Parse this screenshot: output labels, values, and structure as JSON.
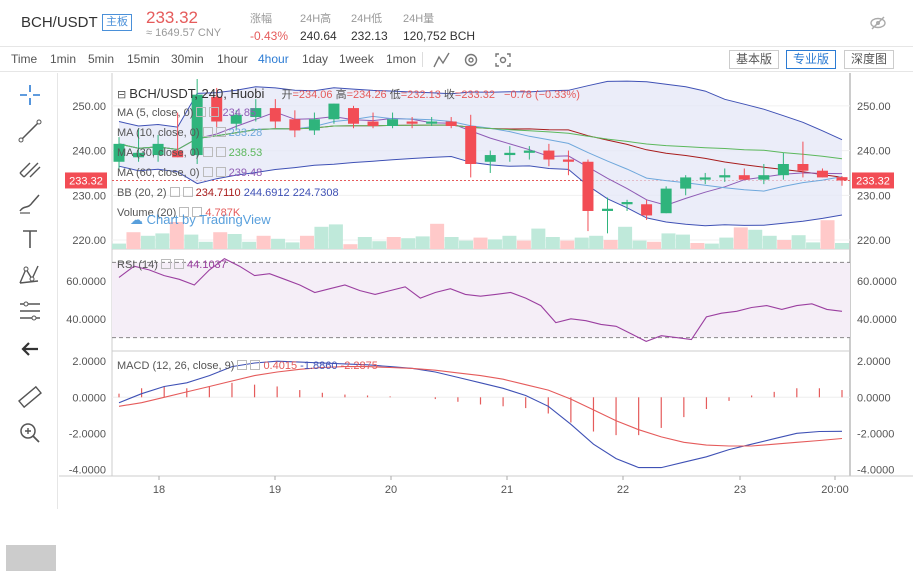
{
  "header": {
    "pair": "BCH/USDT",
    "board_badge": "主板",
    "last_price": "233.32",
    "cny_price": "≈ 1649.57 CNY",
    "stats": [
      {
        "label": "涨幅",
        "value": "-0.43%",
        "negative": true
      },
      {
        "label": "24H高",
        "value": "240.64",
        "negative": false
      },
      {
        "label": "24H低",
        "value": "232.13",
        "negative": false
      },
      {
        "label": "24H量",
        "value": "120,752 BCH",
        "negative": false
      }
    ],
    "hide_icon": "eye-slash-icon"
  },
  "toolbar": {
    "timeframes": [
      {
        "label": "Time",
        "active": false
      },
      {
        "label": "1min",
        "active": false
      },
      {
        "label": "5min",
        "active": false
      },
      {
        "label": "15min",
        "active": false
      },
      {
        "label": "30min",
        "active": false
      },
      {
        "label": "1hour",
        "active": false
      },
      {
        "label": "4hour",
        "active": true
      },
      {
        "label": "1day",
        "active": false
      },
      {
        "label": "1week",
        "active": false
      },
      {
        "label": "1mon",
        "active": false
      }
    ],
    "tool_icons": [
      "indicator-icon",
      "settings-icon",
      "screenshot-icon"
    ],
    "views": [
      {
        "label": "基本版",
        "active": false
      },
      {
        "label": "专业版",
        "active": true
      },
      {
        "label": "深度图",
        "active": false
      }
    ]
  },
  "sidebar": {
    "icons": [
      "crosshair-icon",
      "trend-line-icon",
      "pitchfork-icon",
      "brush-icon",
      "text-icon",
      "pattern-icon",
      "fib-retracement-icon",
      "back-arrow-icon",
      "ruler-icon",
      "zoom-in-icon"
    ]
  },
  "legend": {
    "title": "BCH/USDT, 240, Huobi",
    "ohlc": [
      {
        "label": "开",
        "value": "=234.06"
      },
      {
        "label": "高",
        "value": "=234.26"
      },
      {
        "label": "低",
        "value": "=232.13"
      },
      {
        "label": "收",
        "value": "=233.32"
      }
    ],
    "change": "−0.78 (−0.33%)",
    "indicators": [
      {
        "label": "MA (5, close, 0)",
        "value": "234.85",
        "color": "#8e5bb5"
      },
      {
        "label": "MA (10, close, 0)",
        "value": "233.28",
        "color": "#6fa8dc"
      },
      {
        "label": "MA (30, close, 0)",
        "value": "238.53",
        "color": "#5cb85c"
      },
      {
        "label": "MA (60, close, 0)",
        "value": "239.48",
        "color": "#8e5bb5"
      },
      {
        "label": "BB (20, 2)",
        "values": [
          "234.7110",
          "244.6912",
          "224.7308"
        ],
        "color": "#a81d1d"
      },
      {
        "label": "Volume (20)",
        "value": "4.787K",
        "color": "#e55b5b"
      }
    ],
    "watermark": "Chart by TradingView",
    "rsi": {
      "label": "RSI (14)",
      "value": "44.1037",
      "color": "#9b3fa0"
    },
    "macd": {
      "label": "MACD (12, 26, close, 9)",
      "values": [
        "0.4015",
        "-1.8860",
        "-2.2875"
      ],
      "colors": [
        "#e55b5b",
        "#3f51b5",
        "#e55b5b"
      ]
    }
  },
  "chart_data": {
    "type": "candlestick",
    "x_tick_labels": [
      "18",
      "19",
      "20",
      "21",
      "22",
      "23",
      "20:00"
    ],
    "price_axis": {
      "ticks": [
        "250.00",
        "240.00",
        "230.00",
        "220.00"
      ],
      "current": "233.32",
      "ylim": [
        218,
        256
      ]
    },
    "rsi_axis": {
      "ticks": [
        "60.0000",
        "40.0000"
      ],
      "ylim": [
        25,
        75
      ]
    },
    "macd_axis": {
      "ticks": [
        "2.0000",
        "0.0000",
        "-2.0000",
        "-4.0000"
      ],
      "ylim": [
        -4.2,
        2.4
      ]
    },
    "candles": [
      [
        237.5,
        243.0,
        236.0,
        241.5
      ],
      [
        238.5,
        245.0,
        237.5,
        239.5
      ],
      [
        239.0,
        243.5,
        237.5,
        241.5
      ],
      [
        240.0,
        248.5,
        238.5,
        238.5
      ],
      [
        239.0,
        256.0,
        237.0,
        252.5
      ],
      [
        252.0,
        254.0,
        245.0,
        246.5
      ],
      [
        246.0,
        249.0,
        244.5,
        248.0
      ],
      [
        247.5,
        251.5,
        246.5,
        249.5
      ],
      [
        249.5,
        251.5,
        245.0,
        246.5
      ],
      [
        247.0,
        249.0,
        243.0,
        244.5
      ],
      [
        244.5,
        248.5,
        243.5,
        247.0
      ],
      [
        247.0,
        250.5,
        246.0,
        250.5
      ],
      [
        249.5,
        250.0,
        245.0,
        246.0
      ],
      [
        246.5,
        248.5,
        245.0,
        245.5
      ],
      [
        245.5,
        248.5,
        245.0,
        247.0
      ],
      [
        246.5,
        247.5,
        245.0,
        246.0
      ],
      [
        246.0,
        247.5,
        245.5,
        246.5
      ],
      [
        246.5,
        247.5,
        245.0,
        245.5
      ],
      [
        245.5,
        248.0,
        234.0,
        237.0
      ],
      [
        237.5,
        240.0,
        235.0,
        239.0
      ],
      [
        239.0,
        241.0,
        237.5,
        239.5
      ],
      [
        239.5,
        241.0,
        238.0,
        240.0
      ],
      [
        240.0,
        241.5,
        236.5,
        238.0
      ],
      [
        238.0,
        240.0,
        234.5,
        237.5
      ],
      [
        237.5,
        238.0,
        222.0,
        226.5
      ],
      [
        226.5,
        229.5,
        221.5,
        227.0
      ],
      [
        228.0,
        229.0,
        226.5,
        228.5
      ],
      [
        228.0,
        229.0,
        224.5,
        225.5
      ],
      [
        226.0,
        232.0,
        226.0,
        231.5
      ],
      [
        231.5,
        234.5,
        230.0,
        234.0
      ],
      [
        233.5,
        235.0,
        232.5,
        234.0
      ],
      [
        234.0,
        236.0,
        233.0,
        234.5
      ],
      [
        234.5,
        236.0,
        233.5,
        233.5
      ],
      [
        233.5,
        237.0,
        232.5,
        234.5
      ],
      [
        234.5,
        239.5,
        233.5,
        237.0
      ],
      [
        237.0,
        242.0,
        234.0,
        235.5
      ],
      [
        235.5,
        236.0,
        234.0,
        234.0
      ],
      [
        234.06,
        234.26,
        232.13,
        233.32
      ]
    ],
    "volume": [
      0.9,
      2.8,
      2.2,
      2.6,
      4.5,
      2.4,
      1.2,
      2.8,
      2.5,
      1.2,
      2.2,
      1.7,
      1.1,
      2.2,
      3.7,
      4.1,
      0.8,
      2.0,
      1.3,
      2.0,
      1.8,
      2.1,
      4.2,
      2.0,
      1.4,
      1.9,
      1.6,
      2.2,
      1.4,
      3.4,
      2.0,
      1.4,
      1.9,
      2.2,
      1.5,
      3.7,
      1.4,
      1.2,
      2.6,
      2.4,
      1.0,
      0.9,
      1.9,
      3.6,
      3.2,
      2.2,
      1.5,
      2.3,
      1.1,
      4.8,
      1.0
    ],
    "rsi": [
      62,
      68,
      66,
      63,
      61,
      58,
      66,
      72,
      68,
      63,
      64,
      61,
      58,
      54,
      56,
      58,
      55,
      53,
      55,
      57,
      51,
      54,
      56,
      53,
      52,
      53,
      54,
      51,
      47,
      38,
      40,
      39,
      37,
      36,
      32,
      28,
      31,
      30,
      29,
      41,
      43,
      44,
      46,
      47,
      45,
      47,
      48,
      45,
      44
    ],
    "macd_line": [
      -0.3,
      0.2,
      0.6,
      0.8,
      1.2,
      1.7,
      1.9,
      2.0,
      1.95,
      1.9,
      1.85,
      1.8,
      1.7,
      1.6,
      1.4,
      1.1,
      0.8,
      0.5,
      0.1,
      -0.5,
      -1.5,
      -2.6,
      -3.4,
      -3.9,
      -3.9,
      -3.6,
      -3.3,
      -2.9,
      -2.6,
      -2.3,
      -2.0,
      -1.9,
      -1.886
    ],
    "signal_line": [
      -0.5,
      -0.3,
      0.0,
      0.3,
      0.6,
      0.9,
      1.2,
      1.4,
      1.55,
      1.65,
      1.7,
      1.7,
      1.65,
      1.6,
      1.5,
      1.35,
      1.2,
      1.0,
      0.7,
      0.4,
      -0.1,
      -0.7,
      -1.3,
      -1.8,
      -2.2,
      -2.5,
      -2.65,
      -2.7,
      -2.7,
      -2.6,
      -2.5,
      -2.4,
      -2.2875
    ],
    "macd_hist": [
      0.2,
      0.5,
      0.6,
      0.5,
      0.6,
      0.8,
      0.7,
      0.6,
      0.4,
      0.25,
      0.15,
      0.1,
      0.05,
      0.0,
      -0.1,
      -0.25,
      -0.4,
      -0.5,
      -0.6,
      -0.9,
      -1.4,
      -1.9,
      -2.1,
      -2.1,
      -1.7,
      -1.1,
      -0.65,
      -0.2,
      0.1,
      0.3,
      0.5,
      0.5,
      0.4015
    ]
  }
}
